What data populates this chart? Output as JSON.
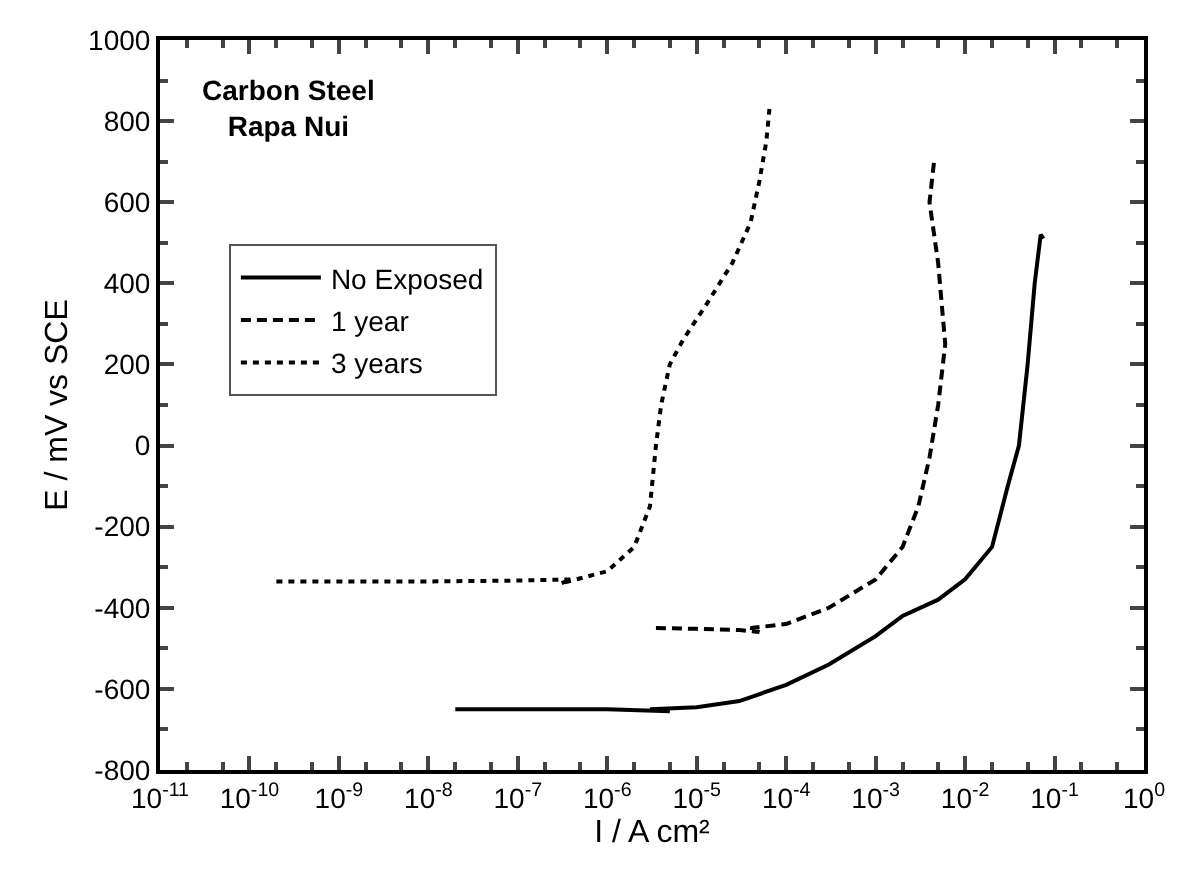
{
  "chart_data": {
    "type": "line",
    "xlabel": "I / A cm²",
    "ylabel": "E / mV vs SCE",
    "log": "x",
    "annotations": [
      "Carbon Steel\nRapa Nui"
    ],
    "xlim": [
      1e-11,
      1
    ],
    "ylim": [
      -800,
      1000
    ],
    "xticks": [
      {
        "value": 1e-11,
        "label": "10$^{-11}$"
      },
      {
        "value": 1e-10,
        "label": "10$^{-10}$"
      },
      {
        "value": 1e-09,
        "label": "10$^{-9}$"
      },
      {
        "value": 1e-08,
        "label": "10$^{-8}$"
      },
      {
        "value": 1e-07,
        "label": "10$^{-7}$"
      },
      {
        "value": 1e-06,
        "label": "10$^{-6}$"
      },
      {
        "value": 1e-05,
        "label": "10$^{-5}$"
      },
      {
        "value": 0.0001,
        "label": "10$^{-4}$"
      },
      {
        "value": 0.001,
        "label": "10$^{-3}$"
      },
      {
        "value": 0.01,
        "label": "10$^{-2}$"
      },
      {
        "value": 0.1,
        "label": "10$^{-1}$"
      },
      {
        "value": 1,
        "label": "10$^{0}$"
      }
    ],
    "yticks": [
      -800,
      -600,
      -400,
      -200,
      0,
      200,
      400,
      600,
      800,
      1000
    ],
    "legend": "top left",
    "marker": "none",
    "series": [
      {
        "name": "No Exposed",
        "color": "#000000",
        "line_style": "solid",
        "x": [
          2e-08,
          1e-06,
          5e-06,
          3e-06,
          1e-05,
          3e-05,
          0.0001,
          0.0003,
          0.001,
          0.002,
          0.005,
          0.01,
          0.02,
          0.03,
          0.04,
          0.05,
          0.06,
          0.07,
          0.075
        ],
        "values": [
          -650,
          -650,
          -655,
          -650,
          -645,
          -630,
          -590,
          -540,
          -470,
          -420,
          -380,
          -330,
          -250,
          -100,
          0,
          200,
          400,
          520,
          510
        ]
      },
      {
        "name": "1 year",
        "color": "#000000",
        "line_style": "dashed",
        "x": [
          3.5e-06,
          1e-05,
          3e-05,
          5e-05,
          4e-05,
          0.0001,
          0.0003,
          0.001,
          0.002,
          0.003,
          0.004,
          0.005,
          0.006,
          0.005,
          0.004,
          0.0045
        ],
        "values": [
          -450,
          -452,
          -455,
          -460,
          -450,
          -440,
          -400,
          -330,
          -250,
          -150,
          -30,
          100,
          250,
          450,
          600,
          700
        ]
      },
      {
        "name": "3 years",
        "color": "#000000",
        "line_style": "dotted",
        "x": [
          2e-10,
          1e-08,
          1e-07,
          4e-07,
          3e-07,
          1e-06,
          2e-06,
          3e-06,
          3.5e-06,
          4e-06,
          5e-06,
          7e-06,
          1.3e-05,
          2.5e-05,
          4e-05,
          5e-05,
          6e-05,
          6.5e-05
        ],
        "values": [
          -335,
          -335,
          -333,
          -330,
          -340,
          -310,
          -250,
          -150,
          0,
          100,
          200,
          260,
          350,
          450,
          550,
          650,
          750,
          830
        ]
      }
    ]
  }
}
